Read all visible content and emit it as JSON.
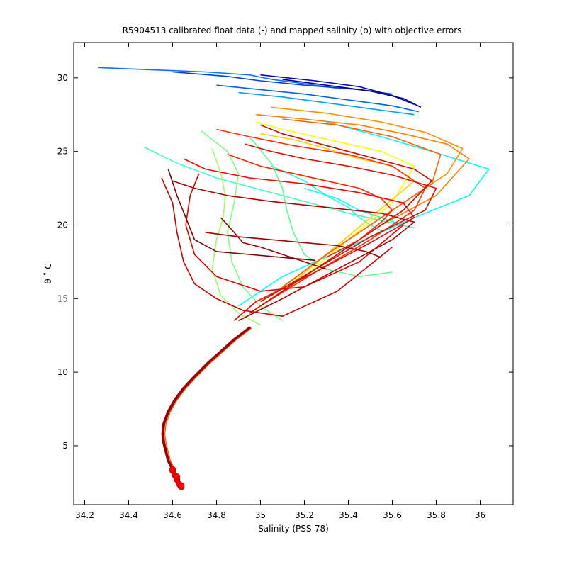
{
  "chart_data": {
    "type": "line",
    "title": "R5904513 calibrated float data (-) and mapped salinity (o) with objective errors",
    "xlabel": "Salinity (PSS-78)",
    "ylabel": "θ ˚ C",
    "xlim": [
      34.15,
      36.15
    ],
    "ylim": [
      1.0,
      32.4
    ],
    "xticks": [
      34.2,
      34.4,
      34.6,
      34.8,
      35,
      35.2,
      35.4,
      35.6,
      35.8,
      36
    ],
    "xtick_labels": [
      "34.2",
      "34.4",
      "34.6",
      "34.8",
      "35",
      "35.2",
      "35.4",
      "35.6",
      "35.8",
      "36"
    ],
    "yticks": [
      5,
      10,
      15,
      20,
      25,
      30
    ],
    "ytick_labels": [
      "5",
      "10",
      "15",
      "20",
      "25",
      "30"
    ],
    "grid": false,
    "colormap": "jet",
    "colormap_stops": [
      "#00008f",
      "#0000ff",
      "#00ffff",
      "#80ff80",
      "#ffff00",
      "#ff8000",
      "#ff0000",
      "#800000"
    ],
    "deep_profile": {
      "x": [
        34.63,
        34.61,
        34.6,
        34.58,
        34.57,
        34.56,
        34.555,
        34.56,
        34.58,
        34.61,
        34.65,
        34.7,
        34.76,
        34.82,
        34.88,
        34.95
      ],
      "y": [
        2.2,
        2.8,
        3.4,
        4.0,
        4.6,
        5.2,
        5.8,
        6.5,
        7.3,
        8.1,
        8.9,
        9.7,
        10.6,
        11.4,
        12.2,
        13.0
      ]
    },
    "mapped_salinity_points": {
      "x": [
        34.6,
        34.61,
        34.62,
        34.63,
        34.64,
        34.6,
        34.62,
        34.64
      ],
      "y": [
        3.3,
        3.0,
        2.7,
        2.4,
        2.2,
        3.4,
        2.9,
        2.3
      ],
      "color": "#ff0000"
    },
    "series": [
      {
        "color": "#1070ff",
        "x": [
          34.26,
          34.5,
          34.75,
          34.95,
          35.05,
          35.2,
          35.35
        ],
        "y": [
          30.7,
          30.55,
          30.4,
          30.2,
          29.9,
          29.6,
          29.3
        ]
      },
      {
        "color": "#0040e0",
        "x": [
          34.6,
          34.85,
          35.0,
          35.2,
          35.45,
          35.6
        ],
        "y": [
          30.4,
          30.1,
          29.8,
          29.5,
          29.2,
          28.9
        ]
      },
      {
        "color": "#0000cc",
        "x": [
          35.0,
          35.25,
          35.45,
          35.6,
          35.7
        ],
        "y": [
          30.2,
          29.8,
          29.4,
          28.8,
          28.2
        ]
      },
      {
        "color": "#00008f",
        "x": [
          35.1,
          35.3,
          35.5,
          35.65,
          35.73
        ],
        "y": [
          29.9,
          29.5,
          29.1,
          28.6,
          28.0
        ]
      },
      {
        "color": "#0060ff",
        "x": [
          34.8,
          35.0,
          35.2,
          35.4,
          35.6,
          35.72
        ],
        "y": [
          29.5,
          29.2,
          28.9,
          28.5,
          28.1,
          27.7
        ]
      },
      {
        "color": "#00a0ff",
        "x": [
          34.9,
          35.1,
          35.3,
          35.5,
          35.7
        ],
        "y": [
          29.0,
          28.7,
          28.3,
          27.9,
          27.5
        ]
      },
      {
        "color": "#00ffff",
        "x": [
          35.3,
          35.55,
          35.78,
          36.04,
          35.95,
          35.7,
          35.4,
          35.1,
          34.9
        ],
        "y": [
          27.0,
          26.0,
          25.0,
          23.8,
          22.0,
          20.5,
          18.5,
          16.5,
          14.5
        ]
      },
      {
        "color": "#40ffc0",
        "x": [
          34.47,
          34.62,
          34.8,
          34.95,
          35.1,
          35.25,
          35.4,
          35.55,
          35.7
        ],
        "y": [
          25.3,
          24.2,
          23.2,
          22.6,
          22.0,
          21.4,
          20.8,
          20.3,
          19.8
        ]
      },
      {
        "color": "#80ff80",
        "x": [
          34.73,
          34.85,
          34.9,
          34.88,
          34.85,
          34.87,
          34.92,
          35.0,
          35.1
        ],
        "y": [
          26.4,
          25.0,
          23.5,
          21.5,
          19.5,
          17.5,
          15.8,
          14.5,
          13.5
        ]
      },
      {
        "color": "#a0ff60",
        "x": [
          34.78,
          34.82,
          34.84,
          34.83,
          34.8,
          34.78,
          34.82,
          34.9,
          35.0
        ],
        "y": [
          25.2,
          23.5,
          22.0,
          20.5,
          19.0,
          17.0,
          15.2,
          14.0,
          13.2
        ]
      },
      {
        "color": "#60ff90",
        "x": [
          34.95,
          35.05,
          35.1,
          35.12,
          35.15,
          35.2,
          35.3,
          35.45,
          35.6
        ],
        "y": [
          26.0,
          24.2,
          22.5,
          21.0,
          19.5,
          18.0,
          17.0,
          16.5,
          16.8
        ]
      },
      {
        "color": "#20ffe0",
        "x": [
          35.05,
          35.2,
          35.3,
          35.4,
          35.45,
          35.5,
          35.55
        ],
        "y": [
          24.0,
          23.0,
          22.0,
          21.2,
          20.5,
          20.0,
          19.6
        ]
      },
      {
        "color": "#00ffff",
        "x": [
          35.2,
          35.35,
          35.45,
          35.55,
          35.65
        ],
        "y": [
          22.5,
          21.8,
          21.0,
          20.5,
          20.0
        ]
      },
      {
        "color": "#ffff00",
        "x": [
          34.98,
          35.1,
          35.25,
          35.4,
          35.55,
          35.7,
          35.6,
          35.4,
          35.2,
          35.0
        ],
        "y": [
          27.0,
          26.5,
          26.0,
          25.5,
          25.0,
          24.0,
          21.5,
          19.0,
          16.5,
          14.5
        ]
      },
      {
        "color": "#ffd000",
        "x": [
          35.0,
          35.15,
          35.3,
          35.45,
          35.6,
          35.7,
          35.5,
          35.3,
          35.1
        ],
        "y": [
          26.2,
          25.8,
          25.2,
          24.5,
          24.0,
          23.0,
          20.5,
          18.0,
          15.5
        ]
      },
      {
        "color": "#ff8000",
        "x": [
          34.98,
          35.2,
          35.45,
          35.65,
          35.85,
          35.95,
          35.8,
          35.55,
          35.3,
          35.05
        ],
        "y": [
          27.5,
          27.2,
          26.8,
          26.2,
          25.5,
          24.5,
          22.0,
          20.0,
          17.5,
          15.0
        ]
      },
      {
        "color": "#ff9000",
        "x": [
          35.05,
          35.3,
          35.55,
          35.75,
          35.92,
          35.85,
          35.6,
          35.35,
          35.1
        ],
        "y": [
          28.0,
          27.6,
          27.0,
          26.3,
          25.2,
          23.5,
          21.0,
          18.5,
          15.8
        ]
      },
      {
        "color": "#ff6000",
        "x": [
          35.1,
          35.35,
          35.6,
          35.82,
          35.78,
          35.55,
          35.3,
          35.05
        ],
        "y": [
          27.2,
          26.8,
          26.0,
          24.8,
          22.8,
          20.5,
          18.0,
          15.2
        ]
      },
      {
        "color": "#ff3000",
        "x": [
          34.8,
          34.95,
          35.15,
          35.4,
          35.6,
          35.75,
          35.7,
          35.5,
          35.25,
          35.0
        ],
        "y": [
          26.5,
          26.0,
          25.4,
          24.8,
          24.0,
          22.5,
          21.0,
          19.0,
          16.8,
          14.5
        ]
      },
      {
        "color": "#ff0000",
        "x": [
          34.65,
          34.75,
          34.95,
          35.2,
          35.45,
          35.65,
          35.7,
          35.5,
          35.25,
          34.98,
          34.88
        ],
        "y": [
          24.5,
          23.8,
          23.2,
          22.8,
          22.2,
          21.5,
          20.5,
          18.8,
          16.8,
          14.8,
          13.5
        ]
      },
      {
        "color": "#e00000",
        "x": [
          34.72,
          34.68,
          34.66,
          34.7,
          34.8,
          35.0,
          35.2,
          35.45,
          35.65
        ],
        "y": [
          23.5,
          22.0,
          20.0,
          18.0,
          16.5,
          15.5,
          15.8,
          17.5,
          20.0
        ]
      },
      {
        "color": "#cc0000",
        "x": [
          34.55,
          34.6,
          34.62,
          34.65,
          34.7,
          34.8,
          34.92,
          35.1,
          35.35,
          35.6
        ],
        "y": [
          23.2,
          21.5,
          19.5,
          17.5,
          16.0,
          15.0,
          14.2,
          13.8,
          15.5,
          18.5
        ]
      },
      {
        "color": "#b00000",
        "x": [
          34.6,
          34.7,
          34.85,
          35.05,
          35.3,
          35.55,
          35.7,
          35.6,
          35.35,
          35.1,
          34.9
        ],
        "y": [
          23.0,
          22.5,
          22.0,
          21.6,
          21.2,
          20.8,
          20.2,
          19.0,
          17.0,
          15.0,
          13.5
        ]
      },
      {
        "color": "#990000",
        "x": [
          34.82,
          34.88,
          34.92,
          35.0,
          35.1,
          35.2,
          35.3
        ],
        "y": [
          20.5,
          19.5,
          18.8,
          18.5,
          18.0,
          17.5,
          17.0
        ]
      },
      {
        "color": "#800000",
        "x": [
          34.58,
          34.62,
          34.7,
          34.8,
          34.95,
          35.1,
          35.25
        ],
        "y": [
          23.8,
          22.0,
          19.0,
          18.2,
          18.0,
          17.8,
          17.6
        ]
      },
      {
        "color": "#dd1000",
        "x": [
          34.93,
          35.05,
          35.2,
          35.4,
          35.6,
          35.8,
          35.75,
          35.5,
          35.25,
          35.0
        ],
        "y": [
          25.5,
          25.0,
          24.5,
          24.0,
          23.4,
          22.5,
          21.0,
          19.2,
          17.0,
          14.8
        ]
      },
      {
        "color": "#c81000",
        "x": [
          35.0,
          35.1,
          35.25,
          35.4,
          35.55,
          35.7,
          35.78,
          35.65,
          35.4,
          35.15,
          34.95
        ],
        "y": [
          26.8,
          26.2,
          25.6,
          25.0,
          24.4,
          23.8,
          23.0,
          21.0,
          18.5,
          16.0,
          14.0
        ]
      },
      {
        "color": "#ff2000",
        "x": [
          34.85,
          35.0,
          35.15,
          35.3,
          35.45,
          35.55,
          35.6,
          35.55,
          35.45,
          35.3
        ],
        "y": [
          24.8,
          24.0,
          23.5,
          23.0,
          22.5,
          21.8,
          21.0,
          20.2,
          19.0,
          17.8
        ]
      },
      {
        "color": "#a00000",
        "x": [
          34.75,
          34.9,
          35.05,
          35.2,
          35.35,
          35.48,
          35.55
        ],
        "y": [
          19.5,
          19.2,
          19.0,
          18.8,
          18.6,
          18.2,
          17.8
        ]
      }
    ]
  }
}
